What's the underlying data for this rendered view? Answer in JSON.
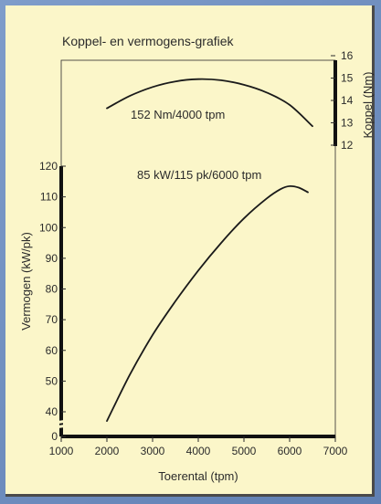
{
  "chart_data": {
    "type": "line",
    "title": "Koppel- en vermogens-grafiek",
    "xlabel": "Toerental (tpm)",
    "xlim": [
      1000,
      7000
    ],
    "x_ticks": [
      "1000",
      "2000",
      "3000",
      "4000",
      "5000",
      "6000",
      "7000"
    ],
    "power_axis": {
      "label": "Vermogen (kW/pk)",
      "ticks": [
        "0",
        "40",
        "50",
        "60",
        "70",
        "80",
        "90",
        "100",
        "110",
        "120"
      ],
      "note": "axis break between 0 and 40"
    },
    "torque_axis": {
      "label": "Koppel (Nm)",
      "ticks": [
        "12",
        "13",
        "14",
        "15",
        "16"
      ],
      "ylim": [
        12,
        16
      ]
    },
    "series": [
      {
        "axis": "torque",
        "annotation": "152 Nm/4000 tpm",
        "x": [
          2000,
          2500,
          3000,
          3500,
          4000,
          4500,
          5000,
          5500,
          6000,
          6500
        ],
        "y": [
          13.65,
          14.2,
          14.6,
          14.85,
          14.95,
          14.9,
          14.7,
          14.35,
          13.8,
          12.85
        ]
      },
      {
        "axis": "power",
        "annotation": "85 kW/115 pk/6000 tpm",
        "x": [
          2000,
          2500,
          3000,
          3500,
          4000,
          4500,
          5000,
          5500,
          5800,
          6000,
          6200,
          6400
        ],
        "y": [
          37,
          52,
          65,
          76,
          86,
          95,
          103,
          109.5,
          112.5,
          113.5,
          113,
          111.5
        ]
      }
    ],
    "colors": {
      "background": "#fbf6c9",
      "frame": "#6f8fbf",
      "ink": "#2b2b2b"
    }
  }
}
